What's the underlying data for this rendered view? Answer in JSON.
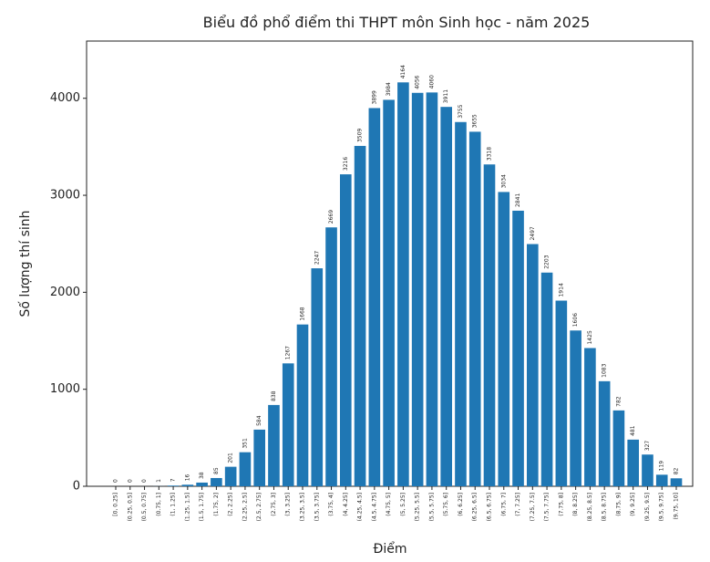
{
  "chart_data": {
    "type": "bar",
    "title": "Biểu đồ phổ điểm thi THPT môn Sinh học - năm 2025",
    "x_label": "Điểm",
    "y_label": "Số lượng thí sinh",
    "categories": [
      "[0, 0.25]",
      "(0.25, 0.5]",
      "(0.5, 0.75]",
      "(0.75, 1]",
      "(1, 1.25]",
      "(1.25, 1.5]",
      "(1.5, 1.75]",
      "(1.75, 2]",
      "(2, 2.25]",
      "(2.25, 2.5]",
      "(2.5, 2.75]",
      "(2.75, 3]",
      "(3, 3.25]",
      "(3.25, 3.5]",
      "(3.5, 3.75]",
      "(3.75, 4]",
      "(4, 4.25]",
      "(4.25, 4.5]",
      "(4.5, 4.75]",
      "(4.75, 5]",
      "(5, 5.25]",
      "(5.25, 5.5]",
      "(5.5, 5.75]",
      "(5.75, 6]",
      "(6, 6.25]",
      "(6.25, 6.5]",
      "(6.5, 6.75]",
      "(6.75, 7]",
      "(7, 7.25]",
      "(7.25, 7.5]",
      "(7.5, 7.75]",
      "(7.75, 8]",
      "(8, 8.25]",
      "(8.25, 8.5]",
      "(8.5, 8.75]",
      "(8.75, 9]",
      "(9, 9.25]",
      "(9.25, 9.5]",
      "(9.5, 9.75]",
      "(9.75, 10]"
    ],
    "values": [
      0,
      0,
      0,
      1,
      7,
      16,
      38,
      85,
      201,
      351,
      584,
      838,
      1267,
      1668,
      2247,
      2669,
      3216,
      3509,
      3899,
      3984,
      4164,
      4056,
      4060,
      3911,
      3755,
      3655,
      3318,
      3034,
      2841,
      2497,
      2203,
      1914,
      1606,
      1425,
      1083,
      782,
      481,
      327,
      119,
      82
    ],
    "color": "#1f77b4",
    "ylim": [
      0,
      4590
    ],
    "yticks": [
      0,
      1000,
      2000,
      3000,
      4000
    ]
  }
}
